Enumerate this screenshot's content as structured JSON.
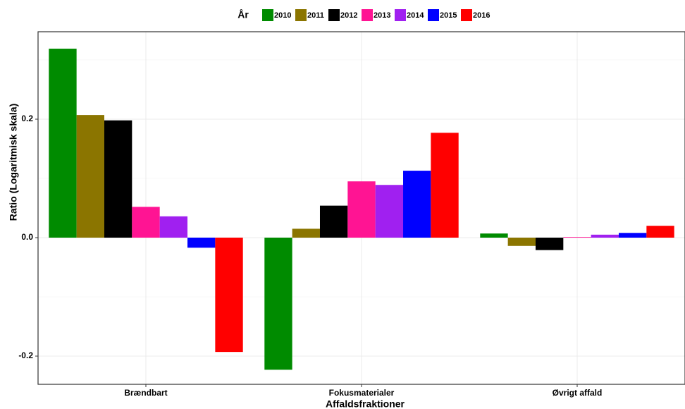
{
  "chart_data": {
    "type": "bar",
    "legend_title": "År",
    "xlabel": "Affaldsfraktioner",
    "ylabel": "Ratio (Logaritmisk skala)",
    "categories": [
      "Brændbart",
      "Fokusmaterialer",
      "Øvrigt affald"
    ],
    "series": [
      {
        "name": "2010",
        "color": "#008b00",
        "values": [
          0.319,
          -0.223,
          0.007
        ]
      },
      {
        "name": "2011",
        "color": "#8b7500",
        "values": [
          0.207,
          0.015,
          -0.014
        ]
      },
      {
        "name": "2012",
        "color": "#000000",
        "values": [
          0.198,
          0.054,
          -0.021
        ]
      },
      {
        "name": "2013",
        "color": "#ff1493",
        "values": [
          0.052,
          0.095,
          0.001
        ]
      },
      {
        "name": "2014",
        "color": "#a020f0",
        "values": [
          0.036,
          0.089,
          0.005
        ]
      },
      {
        "name": "2015",
        "color": "#0000ff",
        "values": [
          -0.017,
          0.113,
          0.008
        ]
      },
      {
        "name": "2016",
        "color": "#ff0000",
        "values": [
          -0.193,
          0.177,
          0.02
        ]
      }
    ],
    "ylim": [
      -0.2476,
      0.3476
    ],
    "yticks": [
      -0.2,
      {
        "value": 0,
        "label": "0.0"
      },
      0.2
    ],
    "grid": true,
    "legend_position": "top"
  }
}
